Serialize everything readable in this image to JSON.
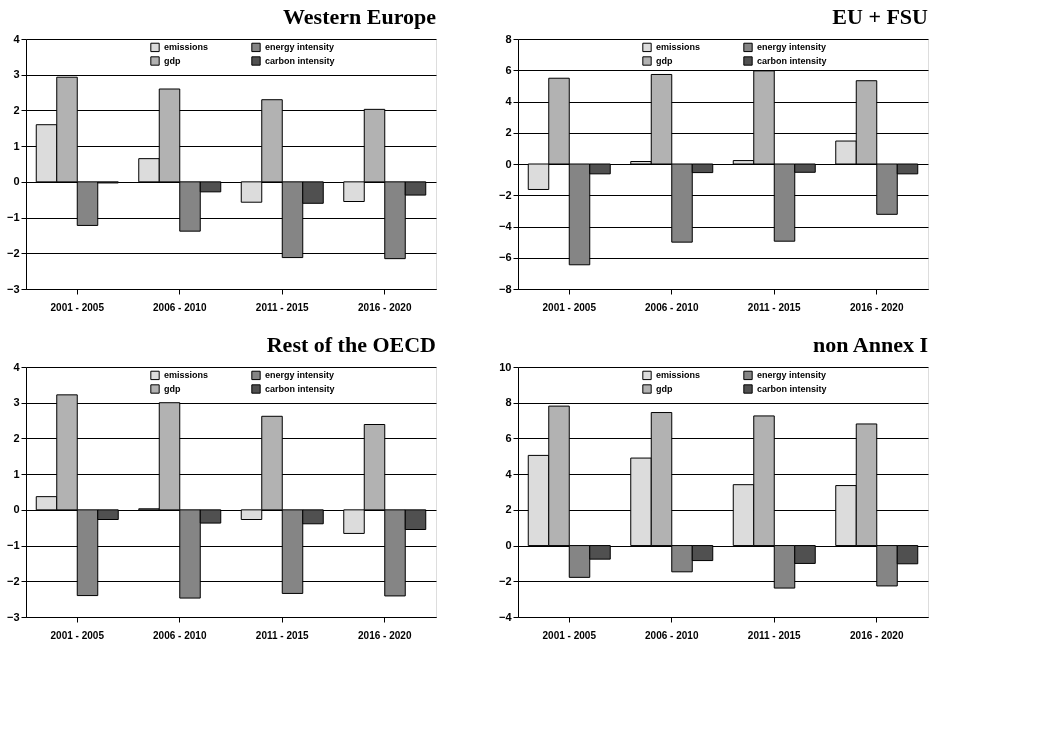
{
  "chart_data": [
    {
      "type": "bar",
      "title": "Western Europe",
      "categories": [
        "2001 - 2005",
        "2006 - 2010",
        "2011 - 2015",
        "2016 - 2020"
      ],
      "ylim": [
        -3,
        4
      ],
      "yticks": [
        -3,
        -2,
        -1,
        0,
        1,
        2,
        3,
        4
      ],
      "grid": "y",
      "legend": "top",
      "series": [
        {
          "name": "emissions",
          "color": "#dcdcdc",
          "values": [
            1.6,
            0.65,
            -0.57,
            -0.55
          ]
        },
        {
          "name": "gdp",
          "color": "#b2b2b2",
          "values": [
            2.93,
            2.6,
            2.3,
            2.03
          ]
        },
        {
          "name": "energy intensity",
          "color": "#858585",
          "values": [
            -1.22,
            -1.38,
            -2.12,
            -2.15
          ]
        },
        {
          "name": "carbon intensity",
          "color": "#505050",
          "values": [
            -0.03,
            -0.28,
            -0.6,
            -0.37
          ]
        }
      ]
    },
    {
      "type": "bar",
      "title": "EU + FSU",
      "categories": [
        "2001 - 2005",
        "2006 - 2010",
        "2011 - 2015",
        "2016 - 2020"
      ],
      "ylim": [
        -8,
        8
      ],
      "yticks": [
        -8,
        -6,
        -4,
        -2,
        0,
        2,
        4,
        6,
        8
      ],
      "grid": "y",
      "legend": "top",
      "series": [
        {
          "name": "emissions",
          "color": "#dcdcdc",
          "values": [
            -1.63,
            0.16,
            0.22,
            1.47
          ]
        },
        {
          "name": "gdp",
          "color": "#b2b2b2",
          "values": [
            5.49,
            5.73,
            5.96,
            5.33
          ]
        },
        {
          "name": "energy intensity",
          "color": "#858585",
          "values": [
            -6.45,
            -5.0,
            -4.94,
            -3.22
          ]
        },
        {
          "name": "carbon intensity",
          "color": "#505050",
          "values": [
            -0.63,
            -0.55,
            -0.53,
            -0.63
          ]
        }
      ]
    },
    {
      "type": "bar",
      "title": "Rest of the OECD",
      "categories": [
        "2001 - 2005",
        "2006 - 2010",
        "2011 - 2015",
        "2016 - 2020"
      ],
      "ylim": [
        -3,
        4
      ],
      "yticks": [
        -3,
        -2,
        -1,
        0,
        1,
        2,
        3,
        4
      ],
      "grid": "y",
      "legend": "top",
      "series": [
        {
          "name": "emissions",
          "color": "#dcdcdc",
          "values": [
            0.37,
            0.03,
            -0.27,
            -0.66
          ]
        },
        {
          "name": "gdp",
          "color": "#b2b2b2",
          "values": [
            3.22,
            3.0,
            2.62,
            2.39
          ]
        },
        {
          "name": "energy intensity",
          "color": "#858585",
          "values": [
            -2.4,
            -2.47,
            -2.34,
            -2.41
          ]
        },
        {
          "name": "carbon intensity",
          "color": "#505050",
          "values": [
            -0.27,
            -0.37,
            -0.39,
            -0.55
          ]
        }
      ]
    },
    {
      "type": "bar",
      "title": "non Annex I",
      "categories": [
        "2001 - 2005",
        "2006 - 2010",
        "2011 - 2015",
        "2016 - 2020"
      ],
      "ylim": [
        -4,
        10
      ],
      "yticks": [
        -4,
        -2,
        0,
        2,
        4,
        6,
        8,
        10
      ],
      "grid": "y",
      "legend": "top",
      "series": [
        {
          "name": "emissions",
          "color": "#dcdcdc",
          "values": [
            5.05,
            4.9,
            3.41,
            3.36
          ]
        },
        {
          "name": "gdp",
          "color": "#b2b2b2",
          "values": [
            7.81,
            7.45,
            7.26,
            6.81
          ]
        },
        {
          "name": "energy intensity",
          "color": "#858585",
          "values": [
            -1.78,
            -1.47,
            -2.38,
            -2.26
          ]
        },
        {
          "name": "carbon intensity",
          "color": "#505050",
          "values": [
            -0.76,
            -0.84,
            -1.0,
            -1.02
          ]
        }
      ]
    }
  ]
}
